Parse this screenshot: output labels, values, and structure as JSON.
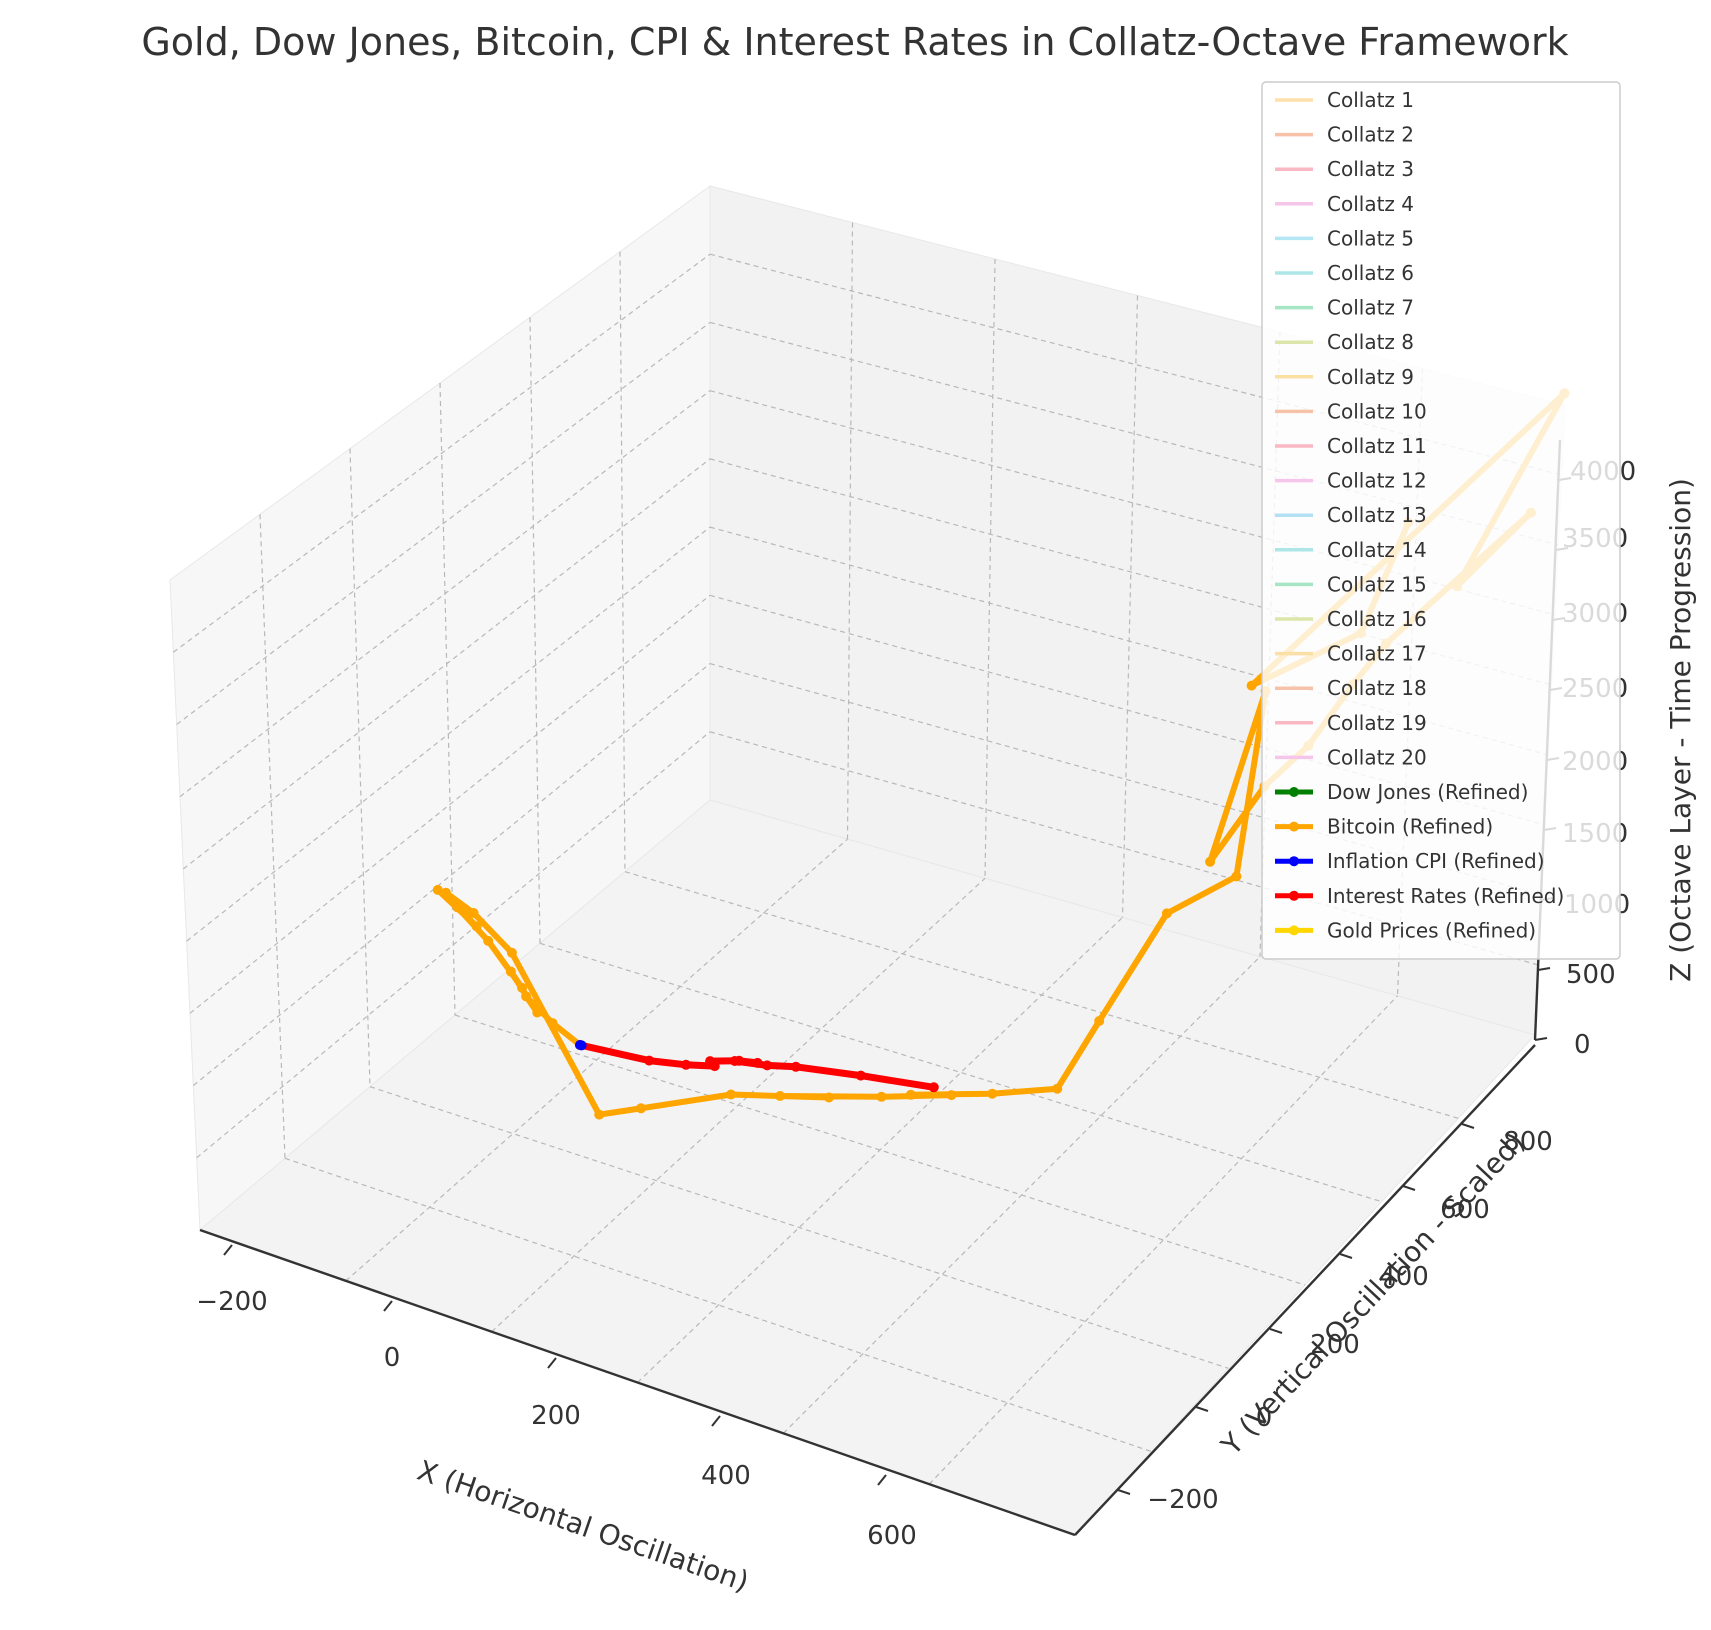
{
  "chart_data": {
    "type": "line",
    "projection": "3d",
    "title": "Gold, Dow Jones, Bitcoin, CPI & Interest Rates in Collatz-Octave Framework",
    "xlabel": "X (Horizontal Oscillation)",
    "ylabel": "Y (Vertical Oscillation - Scaled)",
    "zlabel": "Z (Octave Layer - Time Progression)",
    "xlim": [
      -250,
      750
    ],
    "ylim": [
      -300,
      900
    ],
    "zlim": [
      0,
      4200
    ],
    "xticks": [
      "−200",
      "0",
      "200",
      "400",
      "600"
    ],
    "yticks": [
      "−200",
      "0",
      "200",
      "400",
      "600",
      "800"
    ],
    "zticks": [
      "0",
      "500",
      "1000",
      "1500",
      "2000",
      "2500",
      "3000",
      "3500",
      "4000"
    ],
    "grid": true,
    "legend_position": "top-right",
    "legend": [
      {
        "label": "Collatz 1",
        "color": "#ffe0a8",
        "marker": false
      },
      {
        "label": "Collatz 2",
        "color": "#f7c3a8",
        "marker": false
      },
      {
        "label": "Collatz 3",
        "color": "#f9b8c3",
        "marker": false
      },
      {
        "label": "Collatz 4",
        "color": "#f6c6ea",
        "marker": false
      },
      {
        "label": "Collatz 5",
        "color": "#b4e6f4",
        "marker": false
      },
      {
        "label": "Collatz 6",
        "color": "#ade6e6",
        "marker": false
      },
      {
        "label": "Collatz 7",
        "color": "#a6e6c4",
        "marker": false
      },
      {
        "label": "Collatz 8",
        "color": "#dce6aa",
        "marker": false
      },
      {
        "label": "Collatz 9",
        "color": "#fbe0a6",
        "marker": false
      },
      {
        "label": "Collatz 10",
        "color": "#f7c3a8",
        "marker": false
      },
      {
        "label": "Collatz 11",
        "color": "#f9b8c3",
        "marker": false
      },
      {
        "label": "Collatz 12",
        "color": "#f6c6ea",
        "marker": false
      },
      {
        "label": "Collatz 13",
        "color": "#b4e0f4",
        "marker": false
      },
      {
        "label": "Collatz 14",
        "color": "#ade6e6",
        "marker": false
      },
      {
        "label": "Collatz 15",
        "color": "#a6e6c4",
        "marker": false
      },
      {
        "label": "Collatz 16",
        "color": "#dce6aa",
        "marker": false
      },
      {
        "label": "Collatz 17",
        "color": "#fbe0a6",
        "marker": false
      },
      {
        "label": "Collatz 18",
        "color": "#f7c3a8",
        "marker": false
      },
      {
        "label": "Collatz 19",
        "color": "#f9b8c3",
        "marker": false
      },
      {
        "label": "Collatz 20",
        "color": "#f6c6ea",
        "marker": false
      },
      {
        "label": "Dow Jones (Refined)",
        "color": "#008000",
        "marker": true
      },
      {
        "label": "Bitcoin (Refined)",
        "color": "#ffa500",
        "marker": true
      },
      {
        "label": "Inflation CPI (Refined)",
        "color": "#0000ff",
        "marker": true
      },
      {
        "label": "Interest Rates (Refined)",
        "color": "#ff0000",
        "marker": true
      },
      {
        "label": "Gold Prices (Refined)",
        "color": "#ffd700",
        "marker": true
      }
    ],
    "series": [
      {
        "name": "Bitcoin (Refined)",
        "color": "#ffa500",
        "points": [
          [
            0,
            0,
            0
          ],
          [
            -40,
            10,
            40
          ],
          [
            -80,
            20,
            110
          ],
          [
            -60,
            10,
            70
          ],
          [
            -110,
            40,
            160
          ],
          [
            -90,
            30,
            120
          ],
          [
            -150,
            60,
            230
          ],
          [
            -200,
            80,
            300
          ],
          [
            -170,
            70,
            260
          ],
          [
            -230,
            90,
            330
          ],
          [
            -190,
            80,
            290
          ],
          [
            -220,
            90,
            330
          ],
          [
            -180,
            80,
            300
          ],
          [
            -120,
            60,
            210
          ],
          [
            80,
            -120,
            0
          ],
          [
            120,
            -100,
            60
          ],
          [
            200,
            -40,
            140
          ],
          [
            300,
            0,
            200
          ],
          [
            250,
            -20,
            170
          ],
          [
            350,
            30,
            220
          ],
          [
            420,
            60,
            280
          ],
          [
            380,
            40,
            260
          ],
          [
            460,
            80,
            310
          ],
          [
            520,
            120,
            350
          ],
          [
            540,
            160,
            700
          ],
          [
            560,
            260,
            1150
          ],
          [
            640,
            240,
            1560
          ],
          [
            520,
            560,
            1720
          ],
          [
            610,
            230,
            1620
          ],
          [
            650,
            250,
            2100
          ],
          [
            660,
            340,
            2150
          ],
          [
            670,
            420,
            2350
          ],
          [
            700,
            420,
            2650
          ],
          [
            740,
            700,
            2850
          ],
          [
            720,
            560,
            2700
          ],
          [
            700,
            850,
            3150
          ],
          [
            560,
            400,
            2200
          ],
          [
            640,
            500,
            2420
          ],
          [
            600,
            700,
            2550
          ]
        ]
      },
      {
        "name": "Interest Rates (Refined)",
        "color": "#ff0000",
        "points": [
          [
            0,
            0,
            0
          ],
          [
            80,
            10,
            20
          ],
          [
            120,
            20,
            40
          ],
          [
            150,
            30,
            60
          ],
          [
            140,
            40,
            50
          ],
          [
            170,
            50,
            80
          ],
          [
            190,
            55,
            90
          ],
          [
            165,
            50,
            70
          ],
          [
            200,
            60,
            80
          ],
          [
            230,
            70,
            100
          ],
          [
            300,
            90,
            120
          ],
          [
            380,
            110,
            140
          ]
        ]
      },
      {
        "name": "Inflation CPI (Refined)",
        "color": "#0000ff",
        "points": [
          [
            0,
            0,
            0
          ],
          [
            2,
            0,
            1
          ]
        ]
      }
    ]
  }
}
